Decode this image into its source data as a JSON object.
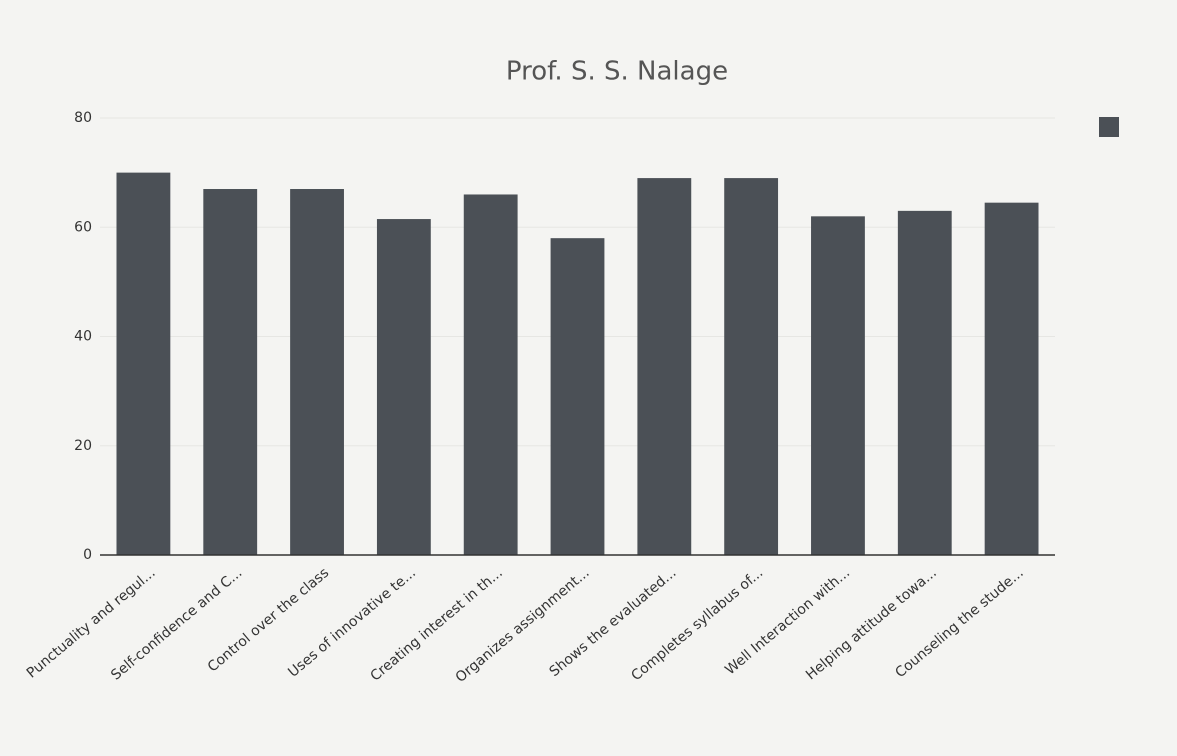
{
  "chart_data": {
    "type": "bar",
    "title": "Prof. S. S. Nalage",
    "categories": [
      "Punctuality and regul...",
      "Self-confidence and C...",
      "Control over the class",
      "Uses of innovative te...",
      "Creating interest in th...",
      "Organizes assignment...",
      "Shows the evaluated...",
      "Completes syllabus of...",
      "Well Interaction with...",
      "Helping attitude towa...",
      "Counseling the stude..."
    ],
    "values": [
      70,
      67,
      67,
      61.5,
      66,
      58,
      69,
      69,
      62,
      63,
      64.5
    ],
    "color": "#4b5056",
    "ylim": [
      0,
      80
    ],
    "yticks": [
      0,
      20,
      40,
      60,
      80
    ],
    "grid": true,
    "legend": "right"
  }
}
